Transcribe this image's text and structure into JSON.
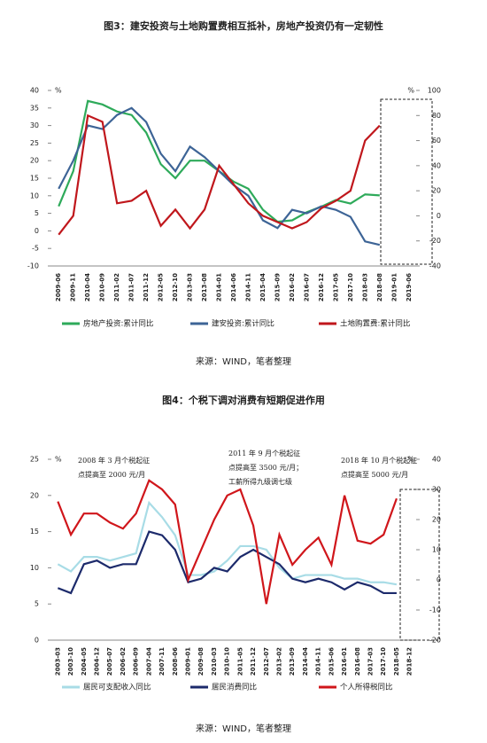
{
  "chart_data": [
    {
      "type": "line",
      "title": "图3：建安投资与土地购置费相互抵补，房地产投资仍有一定韧性",
      "categories": [
        "2009-06",
        "2009-11",
        "2010-04",
        "2010-09",
        "2011-02",
        "2011-07",
        "2011-12",
        "2012-05",
        "2012-10",
        "2013-03",
        "2013-08",
        "2014-01",
        "2014-06",
        "2014-11",
        "2015-04",
        "2015-09",
        "2016-02",
        "2016-07",
        "2016-12",
        "2017-05",
        "2017-10",
        "2018-03",
        "2018-08",
        "2019-01",
        "2019-06"
      ],
      "series": [
        {
          "name": "房地产投资:累计同比",
          "color": "#2eaa5a",
          "values": [
            7,
            17,
            37,
            36,
            34,
            33,
            28,
            19,
            15,
            20,
            20,
            17,
            14,
            12,
            6,
            2.6,
            3,
            5.3,
            6.9,
            8.8,
            7.8,
            10.4,
            10.1,
            null,
            null
          ]
        },
        {
          "name": "建安投资:累计同比",
          "color": "#3d6496",
          "values": [
            12,
            20,
            30,
            29,
            33,
            35,
            31,
            22,
            17,
            24,
            21,
            17,
            13,
            10,
            3,
            0.8,
            6,
            5,
            7,
            6,
            4,
            -3,
            -4,
            null,
            null
          ]
        },
        {
          "name": "土地购置费:累计同比",
          "color": "#c0171c",
          "axis": "y2",
          "values": [
            -15,
            0,
            80,
            75,
            10,
            12,
            20,
            -8,
            5,
            -10,
            5,
            40,
            25,
            10,
            0,
            -5,
            -10,
            -5,
            6,
            12,
            20,
            60,
            72,
            null,
            null
          ]
        }
      ],
      "ylim": [
        -10,
        40
      ],
      "yticks": [
        -10,
        -5,
        0,
        5,
        10,
        15,
        20,
        25,
        30,
        35,
        40
      ],
      "y_unit": "%",
      "y2lim": [
        -40,
        100
      ],
      "y2ticks": [
        -40,
        -20,
        0,
        20,
        40,
        60,
        80,
        100
      ],
      "y2_unit": "%",
      "source": "来源：WIND，笔者整理"
    },
    {
      "type": "line",
      "title": "图4：个税下调对消费有短期促进作用",
      "categories": [
        "2003-03",
        "2003-10",
        "2004-05",
        "2004-12",
        "2005-07",
        "2006-02",
        "2006-09",
        "2007-04",
        "2007-11",
        "2008-06",
        "2009-01",
        "2009-08",
        "2010-03",
        "2010-10",
        "2011-05",
        "2011-12",
        "2012-07",
        "2013-02",
        "2013-09",
        "2014-04",
        "2014-11",
        "2015-06",
        "2016-01",
        "2016-08",
        "2017-03",
        "2017-10",
        "2018-05",
        "2018-12"
      ],
      "series": [
        {
          "name": "居民可支配收入同比",
          "color": "#a8dce6",
          "values": [
            10.5,
            9.5,
            11.5,
            11.5,
            11,
            11.5,
            12,
            19,
            17,
            14.5,
            9,
            9,
            9.5,
            11,
            13,
            13,
            12.5,
            10,
            8.5,
            9,
            9,
            9,
            8.5,
            8.5,
            8,
            8,
            7.7,
            null
          ]
        },
        {
          "name": "居民消费同比",
          "color": "#1c2a6b",
          "values": [
            7.2,
            6.5,
            10.5,
            11,
            10,
            10.5,
            10.5,
            15,
            14.5,
            12.5,
            8,
            8.5,
            10,
            9.5,
            11.5,
            12.5,
            11.5,
            10.5,
            8.5,
            8,
            8.5,
            8,
            7,
            8,
            7.5,
            6.5,
            6.5,
            null
          ]
        },
        {
          "name": "个人所得税同比",
          "color": "#d0161b",
          "axis": "y2",
          "values": [
            26,
            15,
            22,
            22,
            19,
            17,
            22,
            33,
            30,
            25,
            0,
            10,
            20,
            28,
            30,
            18,
            -8,
            15,
            5,
            10,
            14,
            5,
            28,
            13,
            12,
            15,
            27,
            null
          ]
        }
      ],
      "ylim": [
        0,
        25
      ],
      "yticks": [
        0,
        5,
        10,
        15,
        20,
        25
      ],
      "y_unit": "%",
      "y2lim": [
        -20,
        40
      ],
      "y2ticks": [
        -20,
        -10,
        0,
        10,
        20,
        30,
        40
      ],
      "y2_unit": "%",
      "annotations": [
        [
          "2008 年 3 月个税起征",
          "点提高至 2000 元/月"
        ],
        [
          "2011 年 9 月个税起征",
          "点提高至 3500 元/月；",
          "工薪所得九级调七级"
        ],
        [
          "2018 年 10 月个税起征",
          "点提高至 5000 元/月"
        ]
      ],
      "source": "来源：WIND，笔者整理"
    }
  ]
}
